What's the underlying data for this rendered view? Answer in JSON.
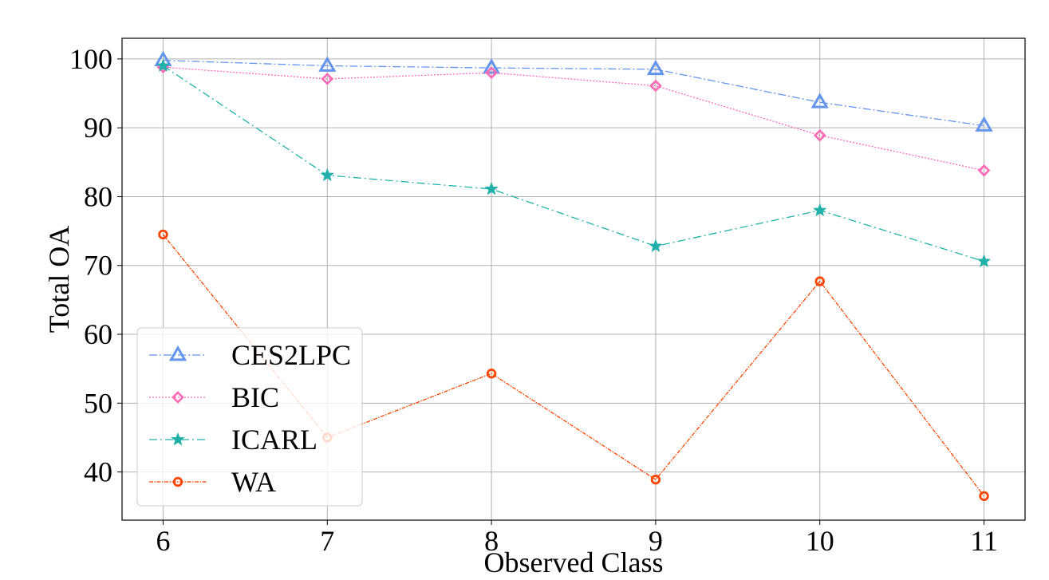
{
  "chart_data": {
    "type": "line",
    "title": "",
    "xlabel": "Observed Class",
    "ylabel": "Total OA",
    "x": [
      6,
      7,
      8,
      9,
      10,
      11
    ],
    "xlim": [
      5.75,
      11.25
    ],
    "ylim": [
      33,
      103
    ],
    "yticks": [
      40,
      50,
      60,
      70,
      80,
      90,
      100
    ],
    "grid": true,
    "legend_position": "lower-left",
    "series": [
      {
        "name": "CES2LPC",
        "values": [
          99.8,
          99.0,
          98.7,
          98.5,
          93.7,
          90.3
        ],
        "color": "#6495ED",
        "marker": "triangle",
        "dash": "10,3,2,3"
      },
      {
        "name": "BIC",
        "values": [
          98.8,
          97.1,
          98.0,
          96.1,
          88.9,
          83.8
        ],
        "color": "#FF69B4",
        "marker": "diamond",
        "dash": "2,2"
      },
      {
        "name": "ICARL",
        "values": [
          99.0,
          83.1,
          81.1,
          72.8,
          78.0,
          70.6
        ],
        "color": "#20B2AA",
        "marker": "star",
        "dash": "10,4,2,4"
      },
      {
        "name": "WA",
        "values": [
          74.5,
          45.0,
          54.3,
          38.9,
          67.7,
          36.5
        ],
        "color": "#FF4500",
        "marker": "circle",
        "dash": "5,1.5,1.5,1.5"
      }
    ]
  }
}
